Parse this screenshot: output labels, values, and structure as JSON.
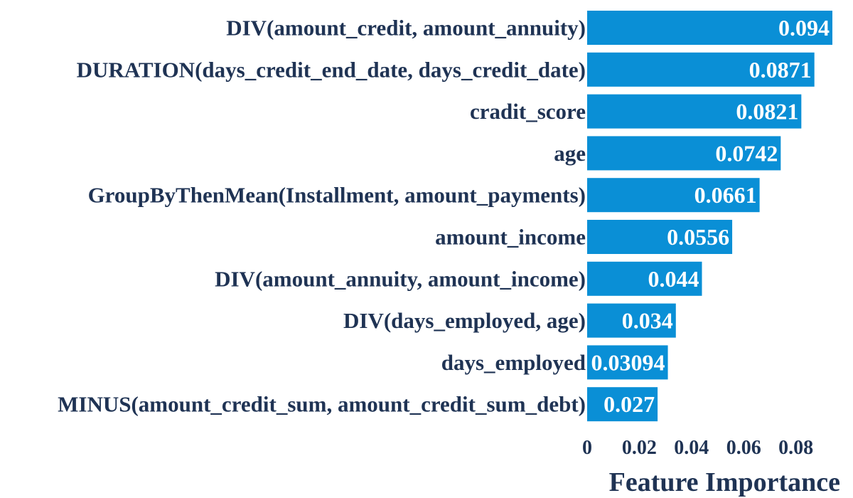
{
  "chart_data": {
    "type": "bar",
    "orientation": "horizontal",
    "categories": [
      "DIV(amount_credit, amount_annuity)",
      "DURATION(days_credit_end_date, days_credit_date)",
      "cradit_score",
      "age",
      "GroupByThenMean(Installment, amount_payments)",
      "amount_income",
      "DIV(amount_annuity, amount_income)",
      "DIV(days_employed, age)",
      "days_employed",
      "MINUS(amount_credit_sum, amount_credit_sum_debt)"
    ],
    "values": [
      0.094,
      0.0871,
      0.0821,
      0.0742,
      0.0661,
      0.0556,
      0.044,
      0.034,
      0.03094,
      0.027
    ],
    "value_labels": [
      "0.094",
      "0.0871",
      "0.0821",
      "0.0742",
      "0.0661",
      "0.0556",
      "0.044",
      "0.034",
      "0.03094",
      "0.027"
    ],
    "xlabel": "Feature Importance",
    "ylabel": "",
    "title": "",
    "xlim": [
      0,
      0.094
    ],
    "xticks": [
      0,
      0.02,
      0.04,
      0.06,
      0.08
    ],
    "xtick_labels": [
      "0",
      "0.02",
      "0.04",
      "0.06",
      "0.08"
    ],
    "grid": false,
    "bar_color": "#0a8fd6",
    "label_color": "#1f3354"
  }
}
